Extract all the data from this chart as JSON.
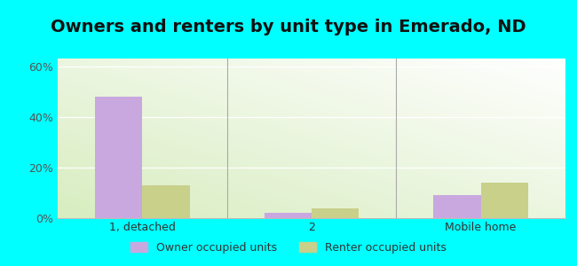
{
  "title": "Owners and renters by unit type in Emerado, ND",
  "categories": [
    "1, detached",
    "2",
    "Mobile home"
  ],
  "owner_values": [
    48.0,
    2.0,
    9.0
  ],
  "renter_values": [
    13.0,
    4.0,
    14.0
  ],
  "owner_color": "#c9a8e0",
  "renter_color": "#c8d08a",
  "yticks": [
    0,
    20,
    40,
    60
  ],
  "ylim": [
    0,
    63
  ],
  "outer_background": "#00ffff",
  "owner_label": "Owner occupied units",
  "renter_label": "Renter occupied units",
  "title_fontsize": 14,
  "bar_width": 0.28,
  "divider_color": "#aaaaaa",
  "grid_color": "#dddddd",
  "tick_color": "#555555"
}
